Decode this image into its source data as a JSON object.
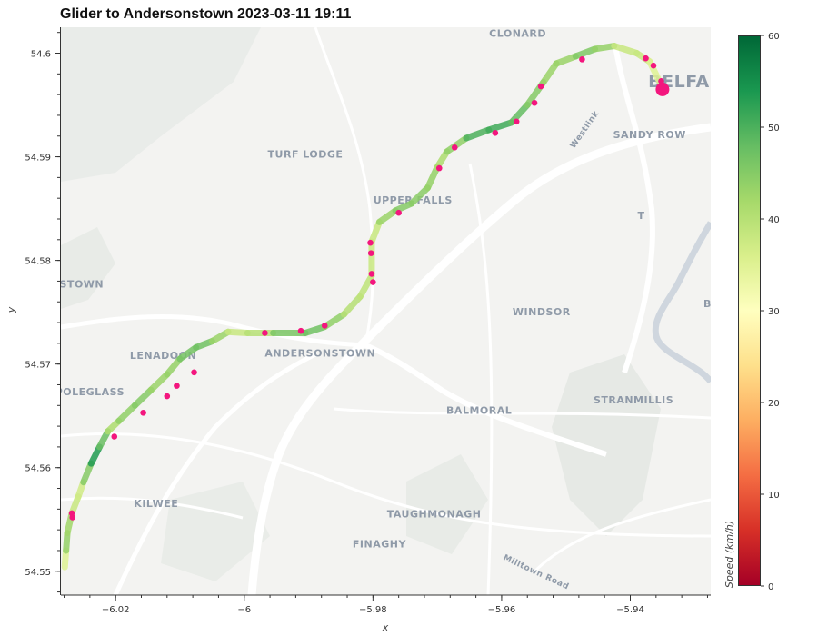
{
  "title": "Glider to Andersonstown 2023-03-11 19:11",
  "chart_data": {
    "type": "scatter",
    "title": "Glider to Andersonstown 2023-03-11 19:11",
    "xlabel": "x",
    "ylabel": "y",
    "xlim": [
      -6.0285,
      -5.9275
    ],
    "ylim": [
      54.5477,
      54.6025
    ],
    "x_ticks": [
      -6.02,
      -6.0,
      -5.98,
      -5.96,
      -5.94
    ],
    "x_tick_labels": [
      "−6.02",
      "−6",
      "−5.98",
      "−5.96",
      "−5.94"
    ],
    "y_ticks": [
      54.55,
      54.56,
      54.57,
      54.58,
      54.59,
      54.6
    ],
    "y_tick_labels": [
      "54.55",
      "54.56",
      "54.57",
      "54.58",
      "54.59",
      "54.6"
    ],
    "colorbar": {
      "label": "Speed (km/h)",
      "range": [
        0,
        60
      ],
      "ticks": [
        0,
        10,
        20,
        30,
        40,
        50,
        60
      ],
      "tick_labels": [
        "0",
        "10",
        "20",
        "30",
        "40",
        "50",
        "60"
      ],
      "colormap": "RdYlGn"
    },
    "route": [
      {
        "x": -6.0279,
        "y": 54.5504,
        "speed": 28
      },
      {
        "x": -6.0277,
        "y": 54.552,
        "speed": 42
      },
      {
        "x": -6.0275,
        "y": 54.5537,
        "speed": 45
      },
      {
        "x": -6.0268,
        "y": 54.5556,
        "speed": 40
      },
      {
        "x": -6.0258,
        "y": 54.5572,
        "speed": 36
      },
      {
        "x": -6.025,
        "y": 54.5586,
        "speed": 38
      },
      {
        "x": -6.0238,
        "y": 54.5604,
        "speed": 52
      },
      {
        "x": -6.0225,
        "y": 54.562,
        "speed": 55
      },
      {
        "x": -6.0212,
        "y": 54.5635,
        "speed": 40
      },
      {
        "x": -6.0195,
        "y": 54.5645,
        "speed": 42
      },
      {
        "x": -6.017,
        "y": 54.566,
        "speed": 46
      },
      {
        "x": -6.0145,
        "y": 54.5675,
        "speed": 44
      },
      {
        "x": -6.012,
        "y": 54.569,
        "speed": 42
      },
      {
        "x": -6.01,
        "y": 54.5705,
        "speed": 45
      },
      {
        "x": -6.0075,
        "y": 54.5716,
        "speed": 48
      },
      {
        "x": -6.005,
        "y": 54.5722,
        "speed": 46
      },
      {
        "x": -6.0025,
        "y": 54.5731,
        "speed": 40
      },
      {
        "x": -5.9995,
        "y": 54.573,
        "speed": 36
      },
      {
        "x": -5.9955,
        "y": 54.573,
        "speed": 44
      },
      {
        "x": -5.9905,
        "y": 54.573,
        "speed": 48
      },
      {
        "x": -5.9875,
        "y": 54.5736,
        "speed": 46
      },
      {
        "x": -5.9845,
        "y": 54.5748,
        "speed": 42
      },
      {
        "x": -5.982,
        "y": 54.5765,
        "speed": 38
      },
      {
        "x": -5.9802,
        "y": 54.5785,
        "speed": 40
      },
      {
        "x": -5.9802,
        "y": 54.5818,
        "speed": 36
      },
      {
        "x": -5.979,
        "y": 54.5837,
        "speed": 40
      },
      {
        "x": -5.9765,
        "y": 54.5848,
        "speed": 46
      },
      {
        "x": -5.974,
        "y": 54.5855,
        "speed": 44
      },
      {
        "x": -5.9715,
        "y": 54.587,
        "speed": 45
      },
      {
        "x": -5.97,
        "y": 54.589,
        "speed": 42
      },
      {
        "x": -5.9685,
        "y": 54.5905,
        "speed": 40
      },
      {
        "x": -5.9655,
        "y": 54.5918,
        "speed": 48
      },
      {
        "x": -5.962,
        "y": 54.5926,
        "speed": 52
      },
      {
        "x": -5.9585,
        "y": 54.5933,
        "speed": 50
      },
      {
        "x": -5.956,
        "y": 54.595,
        "speed": 46
      },
      {
        "x": -5.9535,
        "y": 54.5972,
        "speed": 44
      },
      {
        "x": -5.9515,
        "y": 54.599,
        "speed": 42
      },
      {
        "x": -5.9485,
        "y": 54.5997,
        "speed": 44
      },
      {
        "x": -5.9455,
        "y": 54.6004,
        "speed": 47
      },
      {
        "x": -5.9425,
        "y": 54.6007,
        "speed": 40
      },
      {
        "x": -5.939,
        "y": 54.6,
        "speed": 36
      },
      {
        "x": -5.937,
        "y": 54.5992,
        "speed": 40
      },
      {
        "x": -5.9355,
        "y": 54.5973,
        "speed": 30
      }
    ],
    "stops": [
      {
        "x": -6.0268,
        "y": 54.5556
      },
      {
        "x": -6.0267,
        "y": 54.5552
      },
      {
        "x": -6.0202,
        "y": 54.563
      },
      {
        "x": -6.0157,
        "y": 54.5653
      },
      {
        "x": -6.012,
        "y": 54.5669
      },
      {
        "x": -6.0105,
        "y": 54.5679
      },
      {
        "x": -6.0078,
        "y": 54.5692
      },
      {
        "x": -5.9968,
        "y": 54.573
      },
      {
        "x": -5.9912,
        "y": 54.5732
      },
      {
        "x": -5.9875,
        "y": 54.5737
      },
      {
        "x": -5.9804,
        "y": 54.5817
      },
      {
        "x": -5.9803,
        "y": 54.5807
      },
      {
        "x": -5.9802,
        "y": 54.5787
      },
      {
        "x": -5.98,
        "y": 54.5779
      },
      {
        "x": -5.976,
        "y": 54.5846
      },
      {
        "x": -5.9697,
        "y": 54.5889
      },
      {
        "x": -5.9673,
        "y": 54.5909
      },
      {
        "x": -5.961,
        "y": 54.5923
      },
      {
        "x": -5.9577,
        "y": 54.5934
      },
      {
        "x": -5.9549,
        "y": 54.5952
      },
      {
        "x": -5.9539,
        "y": 54.5968
      },
      {
        "x": -5.9475,
        "y": 54.5994
      },
      {
        "x": -5.9376,
        "y": 54.5995
      },
      {
        "x": -5.9364,
        "y": 54.5988
      },
      {
        "x": -5.9352,
        "y": 54.5973
      }
    ],
    "current_position": {
      "x": -5.935,
      "y": 54.5965
    }
  },
  "map_labels": [
    {
      "text": "CLONARD",
      "x": -5.9575,
      "y": 54.6016,
      "size": 11
    },
    {
      "text": "BELFAST",
      "x": -5.9305,
      "y": 54.5967,
      "size": 19
    },
    {
      "text": "SANDY ROW",
      "x": -5.937,
      "y": 54.5918,
      "size": 11
    },
    {
      "text": "Westlink",
      "x": -5.9468,
      "y": 54.5925,
      "size": 9
    },
    {
      "text": "TURF LODGE",
      "x": -5.9905,
      "y": 54.5899,
      "size": 11
    },
    {
      "text": "UPPER FALLS",
      "x": -5.9738,
      "y": 54.5855,
      "size": 11
    },
    {
      "text": "T",
      "x": -5.9383,
      "y": 54.584,
      "size": 11
    },
    {
      "text": "ISTOWN",
      "x": -6.0256,
      "y": 54.5774,
      "size": 11
    },
    {
      "text": "WINDSOR",
      "x": -5.9538,
      "y": 54.5747,
      "size": 11
    },
    {
      "text": "LENADOON",
      "x": -6.0126,
      "y": 54.5705,
      "size": 11
    },
    {
      "text": "ANDERSONSTOWN",
      "x": -5.9882,
      "y": 54.5707,
      "size": 11
    },
    {
      "text": "STRANMILLIS",
      "x": -5.9395,
      "y": 54.5662,
      "size": 11
    },
    {
      "text": "POLEGLASS",
      "x": -6.024,
      "y": 54.567,
      "size": 11
    },
    {
      "text": "BALMORAL",
      "x": -5.9635,
      "y": 54.5652,
      "size": 11
    },
    {
      "text": "KILWEE",
      "x": -6.0137,
      "y": 54.5562,
      "size": 11
    },
    {
      "text": "TAUGHMONAGH",
      "x": -5.9705,
      "y": 54.5552,
      "size": 11
    },
    {
      "text": "FINAGHY",
      "x": -5.979,
      "y": 54.5523,
      "size": 11
    },
    {
      "text": "Milltown Road",
      "x": -5.9548,
      "y": 54.5497,
      "size": 9
    },
    {
      "text": "B",
      "x": -5.928,
      "y": 54.5755,
      "size": 11
    }
  ]
}
